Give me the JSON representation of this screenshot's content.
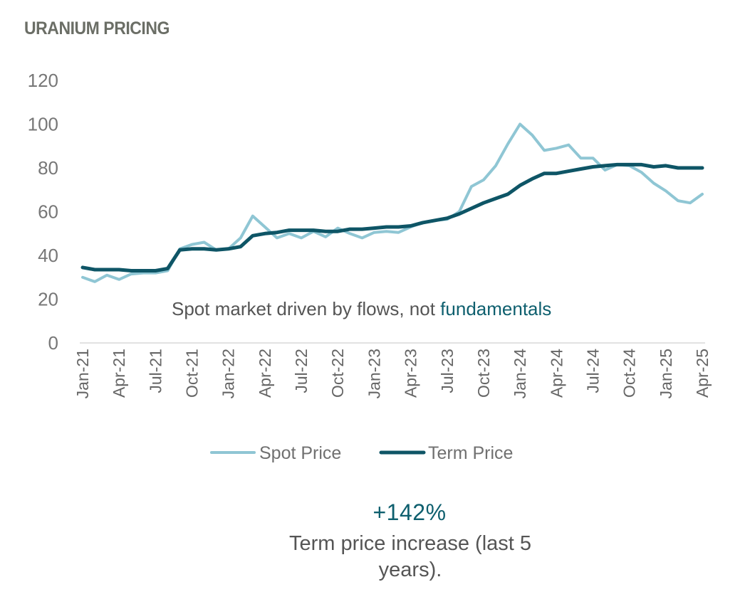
{
  "title": "URANIUM PRICING",
  "chart_data": {
    "type": "line",
    "title": "URANIUM PRICING",
    "xlabel": "",
    "ylabel": "",
    "ylim": [
      0,
      120
    ],
    "yticks": [
      0,
      20,
      40,
      60,
      80,
      100,
      120
    ],
    "xtick_labels": [
      "Jan-21",
      "Apr-21",
      "Jul-21",
      "Oct-21",
      "Jan-22",
      "Apr-22",
      "Jul-22",
      "Oct-22",
      "Jan-23",
      "Apr-23",
      "Jul-23",
      "Oct-23",
      "Jan-24",
      "Apr-24",
      "Jul-24",
      "Oct-24",
      "Jan-25",
      "Apr-25"
    ],
    "grid": false,
    "legend_position": "bottom",
    "series": [
      {
        "name": "Spot Price",
        "color": "#8fc6d4",
        "values": [
          30,
          28,
          31,
          29,
          31.5,
          32,
          32,
          33,
          43,
          45,
          46,
          42.5,
          43,
          48,
          58,
          53,
          48,
          50,
          48,
          51,
          48.5,
          52.5,
          50,
          48,
          50.5,
          51,
          50.5,
          53,
          55,
          56,
          56.5,
          60,
          71.5,
          74.5,
          81,
          91,
          100,
          95,
          88,
          89,
          90.5,
          84.5,
          84.5,
          79,
          81.5,
          81,
          78,
          73,
          69.5,
          65,
          64,
          68
        ]
      },
      {
        "name": "Term Price",
        "color": "#0e5566",
        "values": [
          34.5,
          33.5,
          33.5,
          33.5,
          33,
          33,
          33,
          34,
          42.5,
          43,
          43,
          42.5,
          43,
          44,
          49,
          50,
          50.5,
          51.5,
          51.5,
          51.5,
          51,
          51,
          52,
          52,
          52.5,
          53,
          53,
          53.5,
          55,
          56,
          57,
          59,
          61.5,
          64,
          66,
          68,
          72,
          75,
          77.5,
          77.5,
          78.5,
          79.5,
          80.5,
          81,
          81.5,
          81.5,
          81.5,
          80.5,
          81,
          80,
          80,
          80
        ]
      }
    ]
  },
  "annotation": {
    "text_plain": "Spot market driven by flows, not ",
    "text_accent": "fundamentals"
  },
  "stat": {
    "value": "+142%",
    "caption_line1": "Term price increase (last 5",
    "caption_line2": "years)."
  },
  "colors": {
    "accent": "#0e5f6e",
    "spot": "#8fc6d4",
    "term": "#0e5566"
  }
}
